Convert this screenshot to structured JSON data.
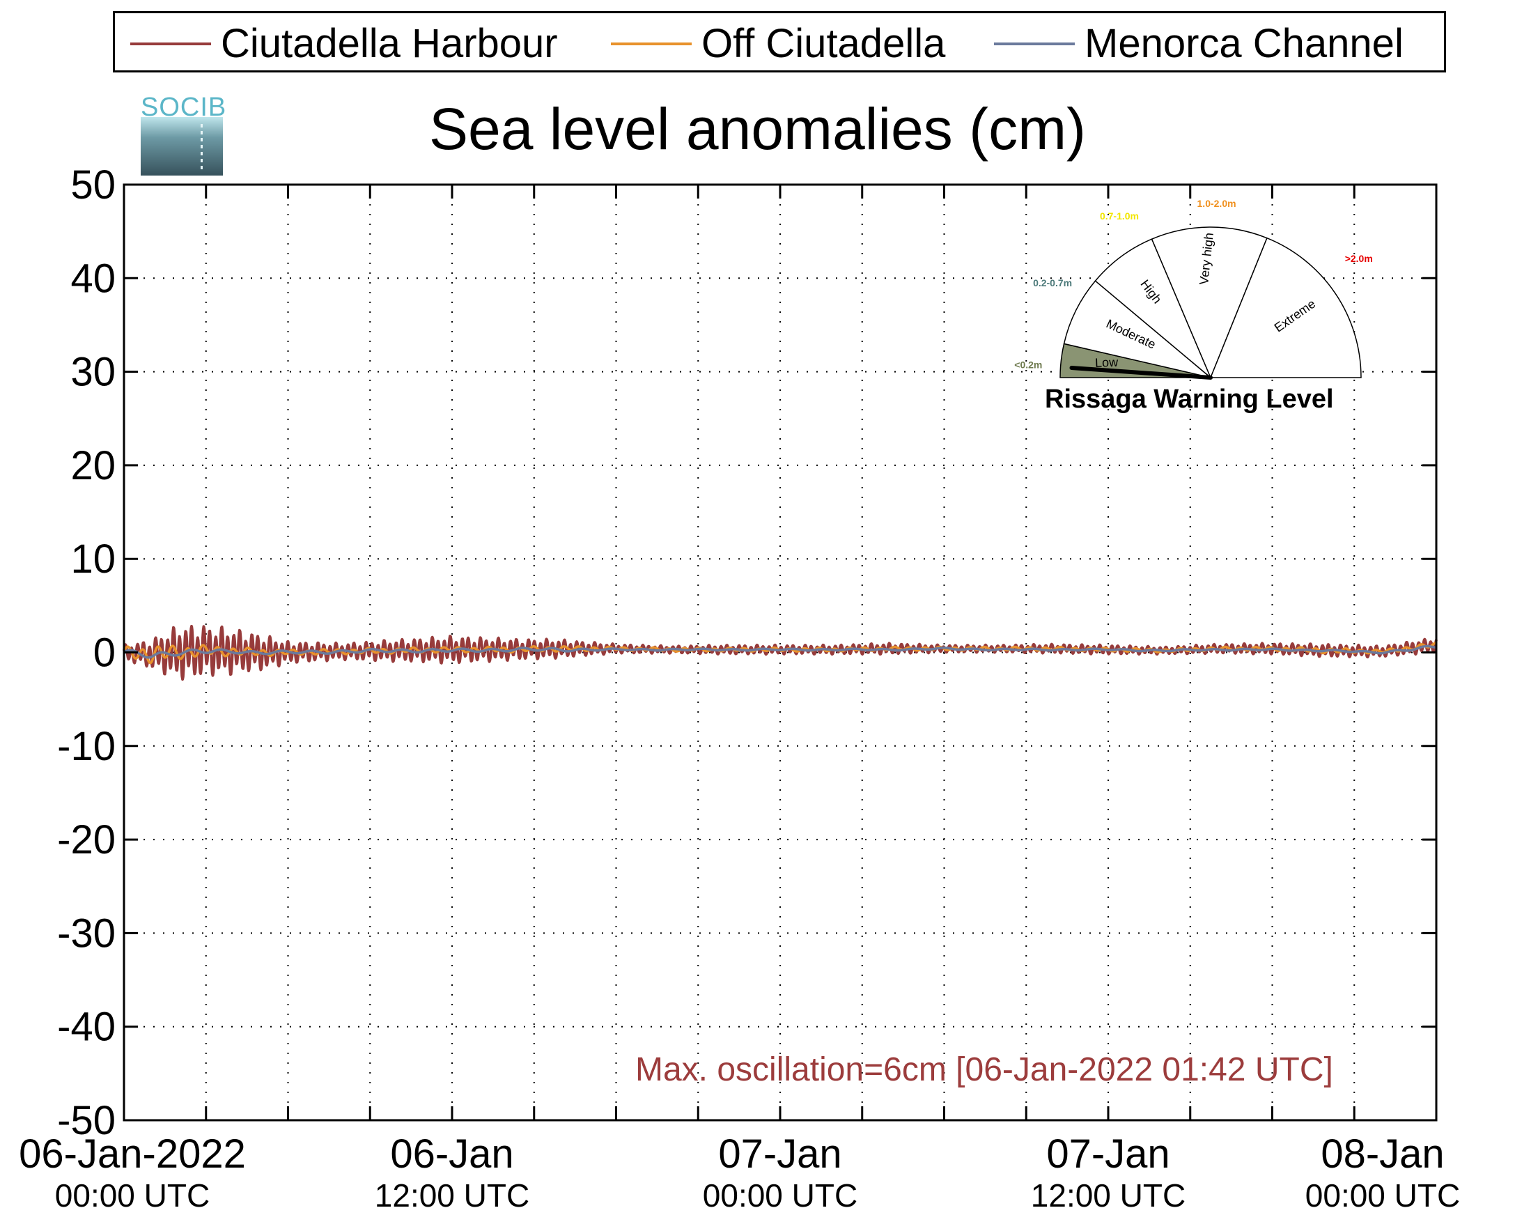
{
  "legend": {
    "items": [
      {
        "label": "Ciutadella Harbour",
        "color": "#973b3b"
      },
      {
        "label": "Off Ciutadella",
        "color": "#e8922c"
      },
      {
        "label": "Menorca Channel",
        "color": "#6b7a9c"
      }
    ]
  },
  "logo": {
    "text": "SOCIB"
  },
  "chart_data": {
    "type": "line",
    "title": "Sea level anomalies (cm)",
    "xlabel": "",
    "ylabel": "",
    "ylim": [
      -50,
      50
    ],
    "yticks": [
      -50,
      -40,
      -30,
      -20,
      -10,
      0,
      10,
      20,
      30,
      40,
      50
    ],
    "xlim_hours": [
      0,
      48
    ],
    "x_ticks": [
      {
        "hour": 0,
        "date": "06-Jan-2022",
        "time": "00:00 UTC"
      },
      {
        "hour": 12,
        "date": "06-Jan",
        "time": "12:00 UTC"
      },
      {
        "hour": 24,
        "date": "07-Jan",
        "time": "00:00 UTC"
      },
      {
        "hour": 36,
        "date": "07-Jan",
        "time": "12:00 UTC"
      },
      {
        "hour": 48,
        "date": "08-Jan",
        "time": "00:00 UTC"
      }
    ],
    "grid": true,
    "legend_position": "top",
    "annotation": "Max. oscillation=6cm [06-Jan-2022 01:42 UTC]",
    "series": [
      {
        "name": "Ciutadella Harbour",
        "hours": [
          0,
          1,
          2,
          3,
          4,
          5,
          6,
          8,
          10,
          12,
          14,
          16,
          18,
          20,
          22,
          24,
          26,
          28,
          30,
          32,
          34,
          36,
          38,
          40,
          42,
          44,
          46,
          48
        ],
        "amplitude": [
          0.8,
          1.6,
          3.0,
          2.8,
          2.5,
          2.0,
          1.2,
          0.9,
          1.2,
          1.5,
          1.2,
          1.0,
          0.5,
          0.4,
          0.5,
          0.5,
          0.5,
          0.6,
          0.4,
          0.4,
          0.5,
          0.5,
          0.4,
          0.5,
          0.6,
          0.7,
          0.6,
          0.8
        ],
        "mean": [
          0,
          -0.2,
          0,
          0.2,
          0.1,
          0,
          0,
          0.1,
          0.2,
          0.3,
          0.3,
          0.4,
          0.4,
          0.3,
          0.3,
          0.3,
          0.3,
          0.4,
          0.4,
          0.4,
          0.4,
          0.3,
          0.2,
          0.4,
          0.4,
          0.2,
          0.1,
          0.8
        ]
      },
      {
        "name": "Off Ciutadella",
        "hours": [
          0,
          1,
          2,
          3,
          4,
          5,
          6,
          8,
          10,
          12,
          14,
          16,
          18,
          20,
          22,
          24,
          26,
          28,
          30,
          32,
          34,
          36,
          38,
          40,
          42,
          44,
          46,
          48
        ],
        "amplitude": [
          0.6,
          1.0,
          0.8,
          0.6,
          0.5,
          0.4,
          0.3,
          0.3,
          0.3,
          0.3,
          0.3,
          0.3,
          0.2,
          0.2,
          0.2,
          0.2,
          0.2,
          0.2,
          0.2,
          0.2,
          0.2,
          0.2,
          0.2,
          0.2,
          0.2,
          0.3,
          0.2,
          0.3
        ],
        "mean": [
          0,
          -0.2,
          0,
          0.2,
          0.1,
          0,
          0,
          0.1,
          0.2,
          0.3,
          0.3,
          0.4,
          0.4,
          0.3,
          0.3,
          0.3,
          0.3,
          0.4,
          0.4,
          0.4,
          0.4,
          0.3,
          0.2,
          0.4,
          0.4,
          0.2,
          0.1,
          0.8
        ]
      },
      {
        "name": "Menorca Channel",
        "hours": [
          0,
          1,
          2,
          3,
          4,
          5,
          6,
          8,
          10,
          12,
          14,
          16,
          18,
          20,
          22,
          24,
          26,
          28,
          30,
          32,
          34,
          36,
          38,
          40,
          42,
          44,
          46,
          48
        ],
        "amplitude": [
          0.3,
          0.4,
          0.3,
          0.3,
          0.2,
          0.2,
          0.2,
          0.2,
          0.2,
          0.2,
          0.2,
          0.2,
          0.1,
          0.1,
          0.1,
          0.1,
          0.1,
          0.1,
          0.1,
          0.1,
          0.1,
          0.1,
          0.1,
          0.1,
          0.1,
          0.1,
          0.1,
          0.2
        ],
        "mean": [
          0,
          -0.3,
          0,
          0.1,
          0.1,
          0,
          0,
          0.1,
          0.2,
          0.2,
          0.3,
          0.3,
          0.3,
          0.3,
          0.3,
          0.3,
          0.3,
          0.3,
          0.4,
          0.3,
          0.3,
          0.3,
          0.2,
          0.3,
          0.3,
          0.2,
          0.0,
          0.6
        ]
      }
    ]
  },
  "gauge": {
    "title": "Rissaga Warning Level",
    "current_level": "Low",
    "sectors": [
      {
        "label": "Low",
        "range": "<0.2m",
        "range_color": "#6e7a4e",
        "fill": "#8a9473"
      },
      {
        "label": "Moderate",
        "range": "0.2-0.7m",
        "range_color": "#4d7a7a",
        "fill": "#ffffff"
      },
      {
        "label": "High",
        "range": "0.7-1.0m",
        "range_color": "#f2e600",
        "fill": "#ffffff"
      },
      {
        "label": "Very high",
        "range": "1.0-2.0m",
        "range_color": "#f0901e",
        "fill": "#ffffff"
      },
      {
        "label": "Extreme",
        "range": ">2.0m",
        "range_color": "#e60000",
        "fill": "#ffffff"
      }
    ]
  }
}
